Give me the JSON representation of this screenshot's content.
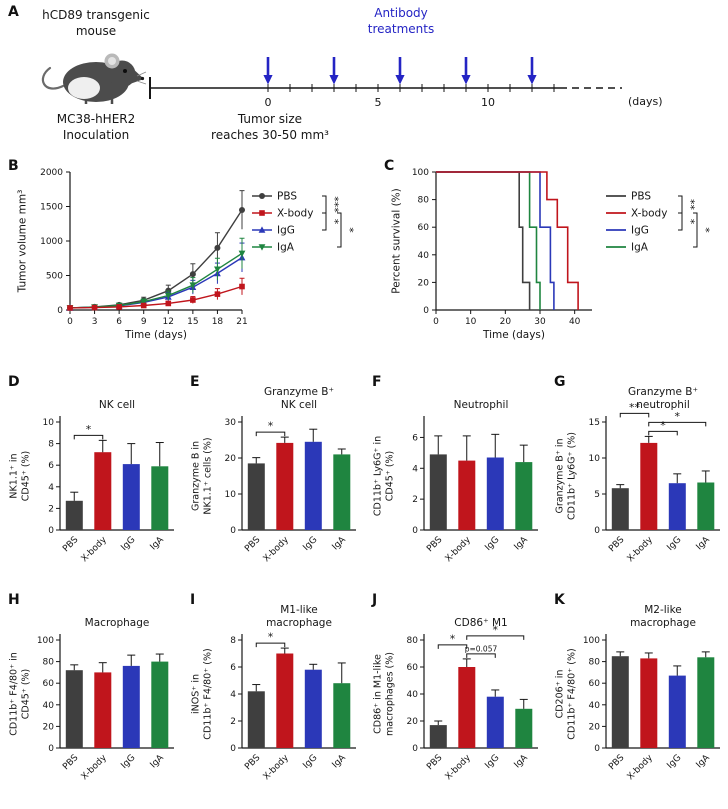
{
  "colors": {
    "pbs": "#3f3f3f",
    "xbody": "#c0151c",
    "igg": "#2b38b8",
    "iga": "#1f8540",
    "treatment_blue": "#2424c4",
    "axis": "#161616"
  },
  "groups": [
    "PBS",
    "X-body",
    "IgG",
    "IgA"
  ],
  "group_color_keys": [
    "pbs",
    "xbody",
    "igg",
    "iga"
  ],
  "panelA": {
    "letter": "A",
    "mouse_label": "hCD89 transgenic\nmouse",
    "treatment_label": "Antibody\ntreatments",
    "inoculation_label": "MC38-hHER2\nInoculation",
    "tumor_size_label": "Tumor size\nreaches 30-50 mm³",
    "days_label": "(days)",
    "timeline": {
      "labeled_days": [
        0,
        5,
        10
      ],
      "tick_day_count": 14,
      "arrow_days": [
        0,
        3,
        6,
        9,
        12
      ]
    }
  },
  "chart_data": [
    {
      "id": "B",
      "letter": "B",
      "type": "line",
      "title": "",
      "xlabel": "Time (days)",
      "ylabel": "Tumor volume mm³",
      "x": [
        0,
        3,
        6,
        9,
        12,
        15,
        18,
        21
      ],
      "xlim": [
        0,
        21
      ],
      "ylim": [
        0,
        2000
      ],
      "xticks": [
        0,
        3,
        6,
        9,
        12,
        15,
        18,
        21
      ],
      "yticks": [
        0,
        500,
        1000,
        1500,
        2000
      ],
      "legend": "right",
      "series": [
        {
          "name": "PBS",
          "color_key": "pbs",
          "marker": "circle",
          "values": [
            30,
            45,
            75,
            140,
            280,
            520,
            900,
            1450
          ],
          "errors": [
            10,
            15,
            25,
            45,
            80,
            150,
            220,
            280
          ]
        },
        {
          "name": "X-body",
          "color_key": "xbody",
          "marker": "square",
          "values": [
            30,
            35,
            45,
            65,
            95,
            145,
            230,
            340
          ],
          "errors": [
            8,
            10,
            15,
            20,
            30,
            50,
            80,
            120
          ]
        },
        {
          "name": "IgG",
          "color_key": "igg",
          "marker": "triangle-up",
          "values": [
            30,
            40,
            60,
            110,
            190,
            330,
            530,
            760
          ],
          "errors": [
            10,
            12,
            20,
            35,
            60,
            100,
            150,
            210
          ]
        },
        {
          "name": "IgA",
          "color_key": "iga",
          "marker": "triangle-down",
          "values": [
            30,
            42,
            65,
            120,
            210,
            360,
            590,
            820
          ],
          "errors": [
            10,
            12,
            20,
            40,
            65,
            110,
            160,
            220
          ]
        }
      ],
      "significance": [
        {
          "a": 0,
          "b": 1,
          "label": "***",
          "tier": 0
        },
        {
          "a": 1,
          "b": 2,
          "label": "*",
          "tier": 0
        },
        {
          "a": 1,
          "b": 3,
          "label": "*",
          "tier": 1
        }
      ]
    },
    {
      "id": "C",
      "letter": "C",
      "type": "survival",
      "title": "",
      "xlabel": "Time (days)",
      "ylabel": "Percent survival (%)",
      "xlim": [
        0,
        45
      ],
      "ylim": [
        0,
        100
      ],
      "xticks": [
        0,
        10,
        20,
        30,
        40
      ],
      "yticks": [
        0,
        20,
        40,
        60,
        80,
        100
      ],
      "legend": "right",
      "series": [
        {
          "name": "PBS",
          "color_key": "pbs",
          "points": [
            [
              0,
              100
            ],
            [
              24,
              100
            ],
            [
              24,
              60
            ],
            [
              25,
              60
            ],
            [
              25,
              20
            ],
            [
              27,
              20
            ],
            [
              27,
              0
            ]
          ]
        },
        {
          "name": "X-body",
          "color_key": "xbody",
          "points": [
            [
              0,
              100
            ],
            [
              32,
              100
            ],
            [
              32,
              80
            ],
            [
              35,
              80
            ],
            [
              35,
              60
            ],
            [
              38,
              60
            ],
            [
              38,
              20
            ],
            [
              41,
              20
            ],
            [
              41,
              0
            ]
          ]
        },
        {
          "name": "IgG",
          "color_key": "igg",
          "points": [
            [
              0,
              100
            ],
            [
              30,
              100
            ],
            [
              30,
              60
            ],
            [
              33,
              60
            ],
            [
              33,
              20
            ],
            [
              34,
              20
            ],
            [
              34,
              0
            ]
          ]
        },
        {
          "name": "IgA",
          "color_key": "iga",
          "points": [
            [
              0,
              100
            ],
            [
              27,
              100
            ],
            [
              27,
              60
            ],
            [
              29,
              60
            ],
            [
              29,
              20
            ],
            [
              30,
              20
            ],
            [
              30,
              0
            ]
          ]
        }
      ],
      "significance": [
        {
          "a": 0,
          "b": 1,
          "label": "**",
          "tier": 0
        },
        {
          "a": 1,
          "b": 2,
          "label": "*",
          "tier": 0
        },
        {
          "a": 1,
          "b": 3,
          "label": "*",
          "tier": 1
        }
      ]
    },
    {
      "id": "D",
      "letter": "D",
      "type": "bar",
      "title": "NK cell",
      "ylabel": "NK1.1⁺ in\nCD45⁺ (%)",
      "categories": [
        "PBS",
        "X-body",
        "IgG",
        "IgA"
      ],
      "values": [
        2.7,
        7.2,
        6.1,
        5.9
      ],
      "errors": [
        0.8,
        1.1,
        1.9,
        2.2
      ],
      "ylim": [
        0,
        10
      ],
      "yticks": [
        0,
        2,
        4,
        6,
        8,
        10
      ],
      "significance": [
        {
          "a": 0,
          "b": 1,
          "label": "*",
          "level": 0
        }
      ]
    },
    {
      "id": "E",
      "letter": "E",
      "type": "bar",
      "title": "Granzyme B⁺\nNK cell",
      "ylabel": "Granzyme B in\nNK1.1⁺ cells (%)",
      "categories": [
        "PBS",
        "X-body",
        "IgG",
        "IgA"
      ],
      "values": [
        18.5,
        24.2,
        24.5,
        21.0
      ],
      "errors": [
        1.6,
        1.6,
        3.5,
        1.5
      ],
      "ylim": [
        0,
        30
      ],
      "yticks": [
        0,
        10,
        20,
        30
      ],
      "significance": [
        {
          "a": 0,
          "b": 1,
          "label": "*",
          "level": 0
        }
      ]
    },
    {
      "id": "F",
      "letter": "F",
      "type": "bar",
      "title": "Neutrophil",
      "ylabel": "CD11b⁺ Ly6G⁺ in\nCD45⁺ (%)",
      "categories": [
        "PBS",
        "X-body",
        "IgG",
        "IgA"
      ],
      "values": [
        4.9,
        4.5,
        4.7,
        4.4
      ],
      "errors": [
        1.2,
        1.6,
        1.5,
        1.1
      ],
      "ylim": [
        0,
        7
      ],
      "yticks": [
        0,
        2,
        4,
        6
      ],
      "significance": []
    },
    {
      "id": "G",
      "letter": "G",
      "type": "bar",
      "title": "Granzyme B⁺\nneutrophil",
      "ylabel": "Granzyme B⁺ in\nCD11b⁺ Ly6G⁺ (%)",
      "categories": [
        "PBS",
        "X-body",
        "IgG",
        "IgA"
      ],
      "values": [
        5.8,
        12.1,
        6.5,
        6.6
      ],
      "errors": [
        0.5,
        0.9,
        1.3,
        1.6
      ],
      "ylim": [
        0,
        15
      ],
      "yticks": [
        0,
        5,
        10,
        15
      ],
      "significance": [
        {
          "a": 0,
          "b": 1,
          "label": "**",
          "level": 2
        },
        {
          "a": 1,
          "b": 2,
          "label": "*",
          "level": 0
        },
        {
          "a": 1,
          "b": 3,
          "label": "*",
          "level": 1
        }
      ]
    },
    {
      "id": "H",
      "letter": "H",
      "type": "bar",
      "title": "Macrophage",
      "ylabel": "CD11b⁺ F4/80⁺ in\nCD45⁺ (%)",
      "categories": [
        "PBS",
        "X-body",
        "IgG",
        "IgA"
      ],
      "values": [
        72,
        70,
        76,
        80
      ],
      "errors": [
        5,
        9,
        10,
        7
      ],
      "ylim": [
        0,
        100
      ],
      "yticks": [
        0,
        20,
        40,
        60,
        80,
        100
      ],
      "significance": []
    },
    {
      "id": "I",
      "letter": "I",
      "type": "bar",
      "title": "M1-like\nmacrophage",
      "ylabel": "iNOS⁺ in\nCD11b⁺ F4/80⁺ (%)",
      "categories": [
        "PBS",
        "X-body",
        "IgG",
        "IgA"
      ],
      "values": [
        4.2,
        7.0,
        5.8,
        4.8
      ],
      "errors": [
        0.5,
        0.4,
        0.4,
        1.5
      ],
      "ylim": [
        0,
        8
      ],
      "yticks": [
        0,
        2,
        4,
        6,
        8
      ],
      "significance": [
        {
          "a": 0,
          "b": 1,
          "label": "*",
          "level": 0
        }
      ]
    },
    {
      "id": "J",
      "letter": "J",
      "type": "bar",
      "title": "CD86⁺ M1",
      "ylabel": "CD86⁺ in M1-like\nmacrophages (%)",
      "categories": [
        "PBS",
        "X-body",
        "IgG",
        "IgA"
      ],
      "values": [
        17,
        60,
        38,
        29
      ],
      "errors": [
        3,
        6,
        5,
        7
      ],
      "ylim": [
        0,
        80
      ],
      "yticks": [
        0,
        20,
        40,
        60,
        80
      ],
      "significance": [
        {
          "a": 0,
          "b": 1,
          "label": "*",
          "level": 1
        },
        {
          "a": 1,
          "b": 2,
          "label": "p=0.057",
          "level": 0
        },
        {
          "a": 1,
          "b": 3,
          "label": "*",
          "level": 2
        }
      ]
    },
    {
      "id": "K",
      "letter": "K",
      "type": "bar",
      "title": "M2-like\nmacrophage",
      "ylabel": "CD206⁺ in\nCD11b⁺ F4/80⁺ (%)",
      "categories": [
        "PBS",
        "X-body",
        "IgG",
        "IgA"
      ],
      "values": [
        85,
        83,
        67,
        84
      ],
      "errors": [
        4,
        5,
        9,
        5
      ],
      "ylim": [
        0,
        100
      ],
      "yticks": [
        0,
        20,
        40,
        60,
        80,
        100
      ],
      "significance": []
    }
  ]
}
